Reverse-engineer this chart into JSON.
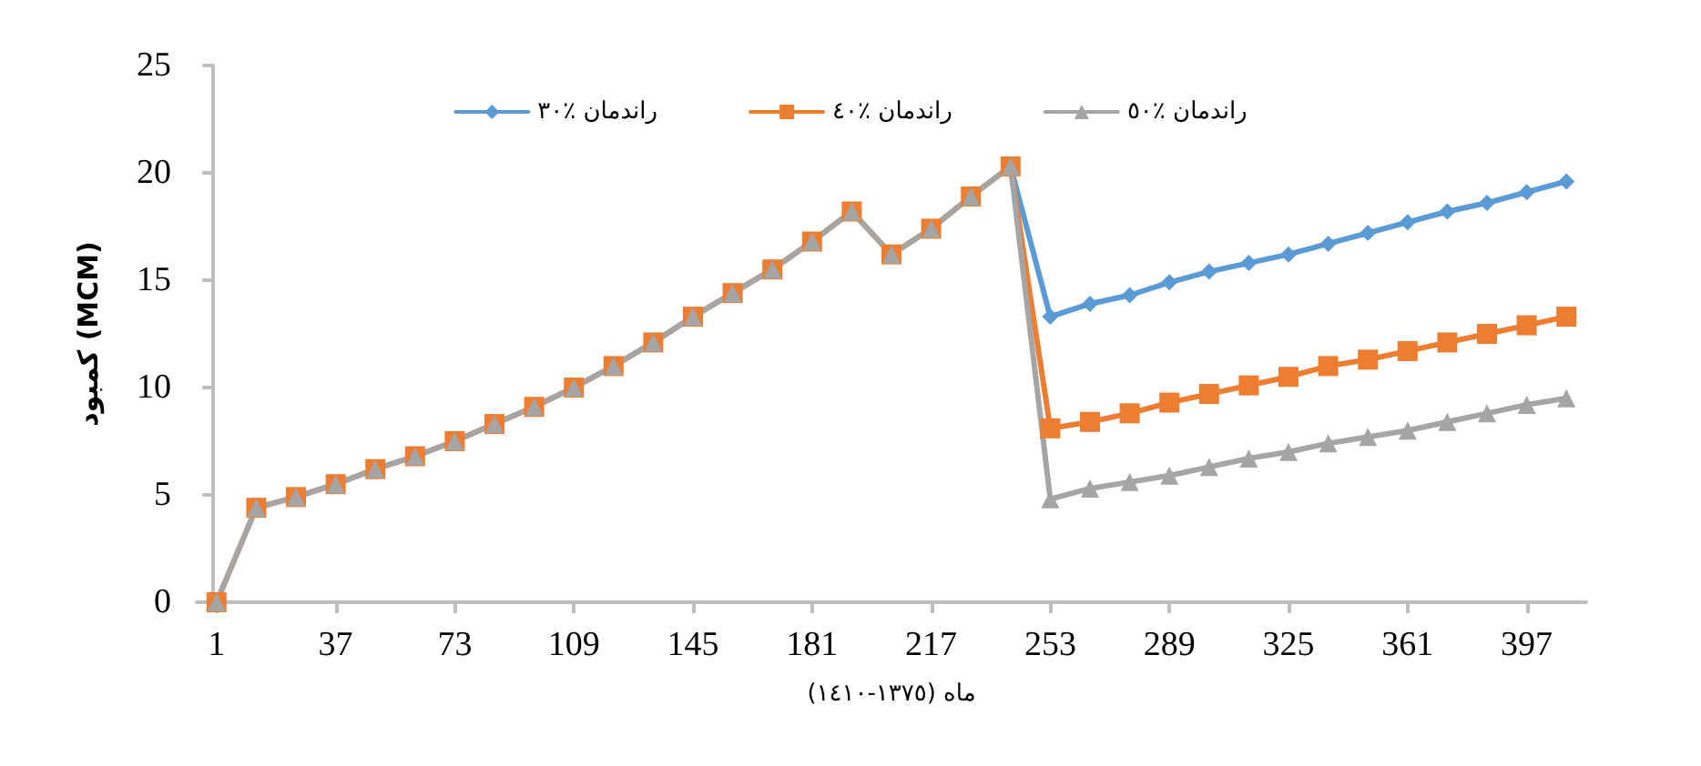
{
  "chart_data": {
    "type": "line",
    "xlabel": "ماه (١٣٧٥-١٤١٠)",
    "ylabel": "کمبود (MCM)",
    "x": [
      1,
      13,
      25,
      37,
      49,
      61,
      73,
      85,
      97,
      109,
      121,
      133,
      145,
      157,
      169,
      181,
      193,
      205,
      217,
      229,
      241,
      253,
      265,
      277,
      289,
      301,
      313,
      325,
      337,
      349,
      361,
      373,
      385,
      397,
      409
    ],
    "xlim": [
      -5,
      415
    ],
    "xticks": [
      1,
      37,
      73,
      109,
      145,
      181,
      217,
      253,
      289,
      325,
      361,
      397
    ],
    "ylim": [
      0,
      25
    ],
    "yticks": [
      0,
      5,
      10,
      15,
      20,
      25
    ],
    "grid": false,
    "legend": "top",
    "series": [
      {
        "name": "راندمان ٪٣٠",
        "color": "#5b9bd5",
        "marker": "diamond",
        "values": [
          null,
          null,
          null,
          null,
          null,
          null,
          null,
          null,
          null,
          null,
          null,
          null,
          null,
          null,
          null,
          null,
          null,
          null,
          null,
          null,
          20.3,
          13.3,
          13.9,
          14.3,
          14.9,
          15.4,
          15.8,
          16.2,
          16.7,
          17.2,
          17.7,
          18.2,
          18.6,
          19.1,
          19.6
        ]
      },
      {
        "name": "راندمان ٪٤٠",
        "color": "#ed7d31",
        "marker": "square",
        "values": [
          0,
          4.4,
          4.9,
          5.5,
          6.2,
          6.8,
          7.5,
          8.3,
          9.1,
          10.0,
          11.0,
          12.1,
          13.3,
          14.4,
          15.5,
          16.8,
          18.2,
          16.2,
          17.4,
          18.9,
          20.3,
          8.1,
          8.4,
          8.8,
          9.3,
          9.7,
          10.1,
          10.5,
          11.0,
          11.3,
          11.7,
          12.1,
          12.5,
          12.9,
          13.3
        ]
      },
      {
        "name": "راندمان ٪٥٠",
        "color": "#a5a5a5",
        "marker": "triangle",
        "values": [
          0,
          4.4,
          4.9,
          5.5,
          6.2,
          6.8,
          7.5,
          8.3,
          9.1,
          10.0,
          11.0,
          12.1,
          13.3,
          14.4,
          15.5,
          16.8,
          18.2,
          16.2,
          17.4,
          18.9,
          20.3,
          4.8,
          5.3,
          5.6,
          5.9,
          6.3,
          6.7,
          7.0,
          7.4,
          7.7,
          8.0,
          8.4,
          8.8,
          9.2,
          9.5
        ]
      }
    ]
  }
}
